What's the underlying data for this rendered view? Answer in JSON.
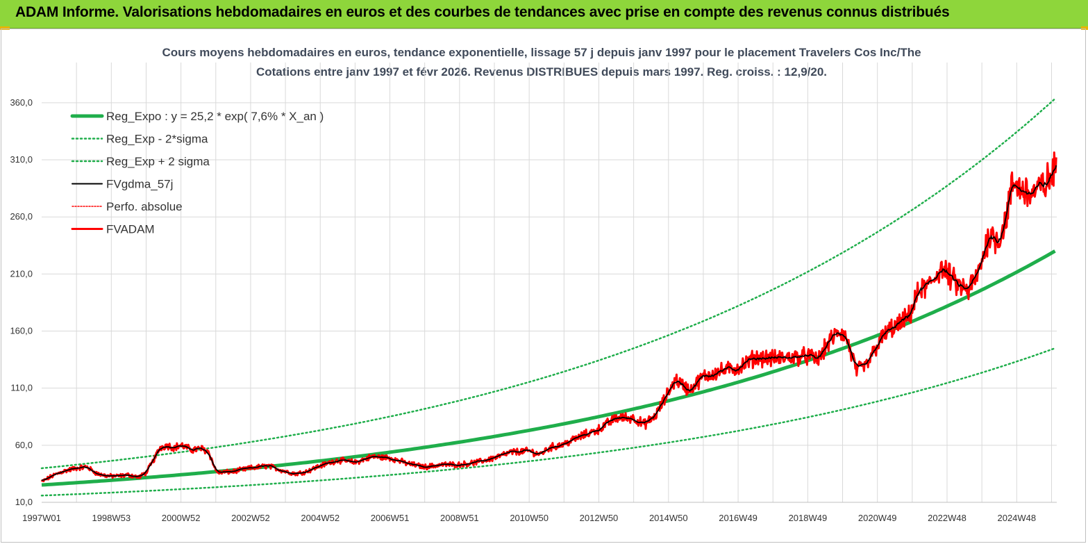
{
  "banner": {
    "title": "ADAM Informe. Valorisations hebdomadaires en euros et des courbes de tendances avec prise en compte des revenus connus distribués"
  },
  "chart_data": {
    "type": "line",
    "title_line1": "Cours moyens hebdomadaires en euros, tendance exponentielle, lissage 57 j depuis janv 1997 pour le placement Travelers Cos Inc/The",
    "title_line2": "Cotations entre janv 1997 et févr 2026. Revenus DISTRIBUES depuis mars 1997. Reg. croiss. : 12,9/20.",
    "ylim": [
      10,
      380
    ],
    "yticks": [
      10,
      60,
      110,
      160,
      210,
      260,
      310,
      360
    ],
    "ytick_labels": [
      "10,0",
      "60,0",
      "110,0",
      "160,0",
      "210,0",
      "260,0",
      "310,0",
      "360,0"
    ],
    "xlim": [
      1997.0,
      2026.15
    ],
    "xtick_years": [
      1997.0,
      1999.0,
      2001.0,
      2003.0,
      2005.0,
      2007.0,
      2009.0,
      2011.0,
      2013.0,
      2015.0,
      2017.0,
      2019.0,
      2021.0,
      2023.0,
      2025.0
    ],
    "xtick_labels": [
      "1997W01",
      "1998W53",
      "2000W52",
      "2002W52",
      "2004W52",
      "2006W51",
      "2008W51",
      "2010W50",
      "2012W50",
      "2014W50",
      "2016W49",
      "2018W49",
      "2020W49",
      "2022W48",
      "2024W48"
    ],
    "grid": true,
    "legend_position": "top-left",
    "colors": {
      "regression": "#1fae4b",
      "smoothed": "#000000",
      "price": "#ff0000",
      "perf": "#ff0000",
      "grid": "#d9d9d9"
    },
    "series": [
      {
        "name": "Reg_Expo : y = 25,2 * exp( 7,6% *  X_an )",
        "style": "thick-solid-green",
        "formula": {
          "a": 25.2,
          "rate": 0.076
        }
      },
      {
        "name": "Reg_Exp - 2*sigma",
        "style": "dotted-green",
        "factor": 0.63
      },
      {
        "name": "Reg_Exp + 2 sigma",
        "style": "dotted-green",
        "factor": 1.58
      },
      {
        "name": "FVgdma_57j",
        "style": "solid-black"
      },
      {
        "name": "Perfo. absolue",
        "style": "dotted-red"
      },
      {
        "name": "FVADAM",
        "style": "thick-solid-red",
        "x": [
          1997.0,
          1997.3,
          1997.6,
          1998.0,
          1998.3,
          1998.6,
          1998.9,
          1999.2,
          1999.5,
          1999.8,
          2000.0,
          2000.2,
          2000.4,
          2000.6,
          2000.8,
          2001.0,
          2001.3,
          2001.6,
          2001.8,
          2002.0,
          2002.1,
          2002.5,
          2003.0,
          2003.5,
          2004.0,
          2004.3,
          2004.6,
          2005.0,
          2005.5,
          2006.0,
          2006.5,
          2007.0,
          2007.5,
          2008.0,
          2008.5,
          2009.0,
          2009.5,
          2010.0,
          2010.5,
          2011.0,
          2011.3,
          2011.6,
          2012.0,
          2012.5,
          2013.0,
          2013.5,
          2014.0,
          2014.3,
          2014.6,
          2014.8,
          2015.2,
          2015.6,
          2016.0,
          2016.5,
          2017.0,
          2017.5,
          2018.0,
          2018.5,
          2019.0,
          2019.3,
          2019.6,
          2019.9,
          2020.1,
          2020.25,
          2020.4,
          2020.7,
          2021.0,
          2021.3,
          2021.6,
          2021.9,
          2022.2,
          2022.5,
          2022.8,
          2023.0,
          2023.3,
          2023.6,
          2023.9,
          2024.2,
          2024.5,
          2024.7,
          2024.9,
          2025.1,
          2025.4,
          2025.7,
          2026.0,
          2026.15
        ],
        "values": [
          28,
          33,
          37,
          40,
          41,
          35,
          33,
          33,
          34,
          32,
          36,
          46,
          58,
          60,
          58,
          60,
          56,
          57,
          54,
          38,
          36,
          37,
          40,
          42,
          37,
          35,
          37,
          42,
          47,
          45,
          50,
          49,
          44,
          41,
          43,
          43,
          45,
          49,
          54,
          55,
          52,
          58,
          61,
          68,
          74,
          84,
          84,
          78,
          85,
          95,
          118,
          108,
          120,
          125,
          128,
          137,
          136,
          137,
          138,
          135,
          150,
          160,
          155,
          140,
          125,
          130,
          148,
          160,
          165,
          172,
          195,
          200,
          215,
          210,
          200,
          195,
          210,
          245,
          240,
          260,
          290,
          285,
          280,
          285,
          295,
          305
        ]
      }
    ]
  }
}
